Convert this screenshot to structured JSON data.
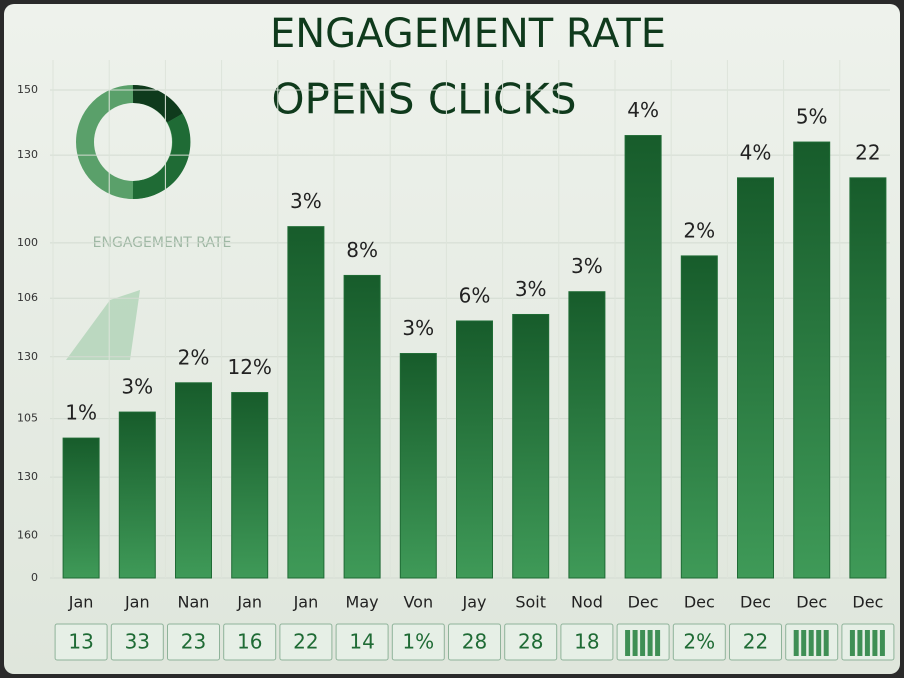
{
  "chart_data": {
    "type": "bar",
    "title": "ENGAGEMENT RATE",
    "subtitle": "OPENS CLICKS",
    "watermark": "ENGAGEMENT RATE",
    "categories": [
      "Jan",
      "Jan",
      "Nan",
      "Jan",
      "Jan",
      "May",
      "Von",
      "Jay",
      "Soit",
      "Nod",
      "Dec",
      "Dec",
      "Dec",
      "Dec",
      "Dec"
    ],
    "values": [
      43,
      51,
      60,
      57,
      108,
      93,
      69,
      79,
      81,
      88,
      136,
      99,
      123,
      134,
      123
    ],
    "bar_labels": [
      "1%",
      "3%",
      "2%",
      "12%",
      "3%",
      "8%",
      "3%",
      "6%",
      "3%",
      "3%",
      "4%",
      "2%",
      "4%",
      "5%",
      "22"
    ],
    "footer_labels": [
      "13",
      "33",
      "23",
      "16",
      "22",
      "14",
      "1%",
      "28",
      "28",
      "18",
      null,
      "2%",
      "22",
      null,
      null
    ],
    "color": "#1f6b35",
    "ylim": [
      0,
      150
    ],
    "yticks": [
      0,
      {
        "value": 13,
        "label": "160"
      },
      {
        "value": 31,
        "label": "130"
      },
      {
        "value": 49,
        "label": "105"
      },
      {
        "value": 68,
        "label": "130"
      },
      {
        "value": 86,
        "label": "106"
      },
      {
        "value": 103,
        "label": "100"
      },
      130,
      150
    ],
    "grid": true
  }
}
